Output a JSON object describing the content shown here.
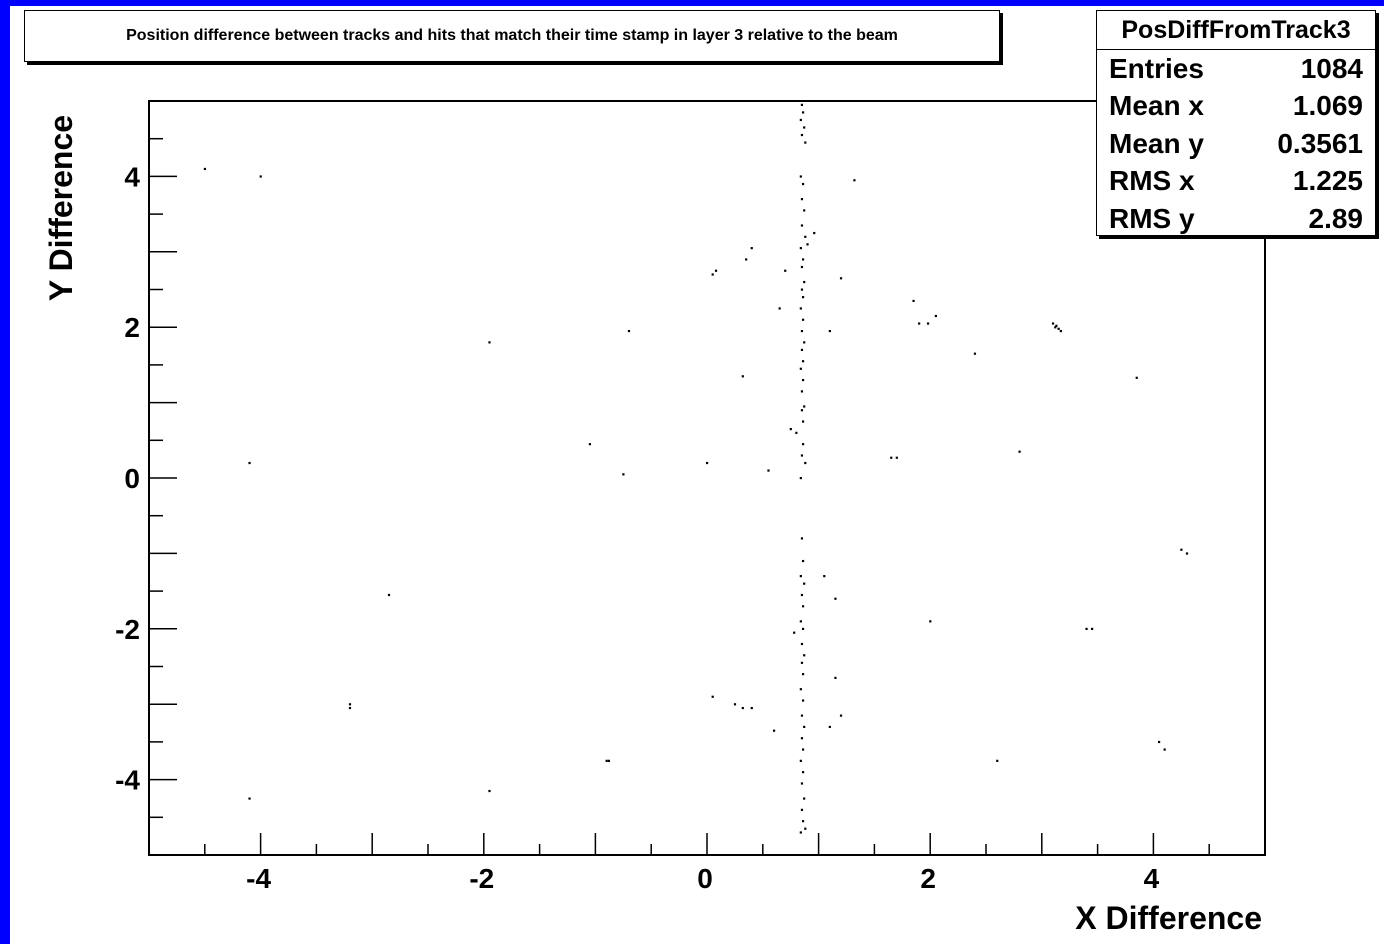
{
  "title": "Position difference between tracks and hits that match their time stamp in layer 3 relative to the beam",
  "stats": {
    "name": "PosDiffFromTrack3",
    "rows": [
      {
        "label": "Entries",
        "value": "1084"
      },
      {
        "label": "Mean x",
        "value": "1.069"
      },
      {
        "label": "Mean y",
        "value": "0.3561"
      },
      {
        "label": "RMS x",
        "value": "1.225"
      },
      {
        "label": "RMS y",
        "value": "2.89"
      }
    ]
  },
  "colors": {
    "frame": "#0000ff",
    "background": "#ffffff",
    "markers": "#000000"
  },
  "chart_data": {
    "type": "scatter",
    "title": "Position difference between tracks and hits that match their time stamp in layer 3 relative to the beam",
    "xlabel": "X Difference",
    "ylabel": "Y Difference",
    "xlim": [
      -5,
      5
    ],
    "ylim": [
      -5,
      5
    ],
    "x_ticks": [
      -4,
      -2,
      0,
      2,
      4
    ],
    "y_ticks": [
      -4,
      -2,
      0,
      2,
      4
    ],
    "grid": false,
    "points": [
      [
        0.85,
        4.95
      ],
      [
        0.86,
        4.85
      ],
      [
        0.84,
        4.75
      ],
      [
        0.87,
        4.65
      ],
      [
        0.85,
        4.55
      ],
      [
        0.88,
        4.45
      ],
      [
        0.84,
        4.0
      ],
      [
        0.86,
        3.9
      ],
      [
        0.85,
        3.7
      ],
      [
        0.87,
        3.55
      ],
      [
        0.85,
        3.35
      ],
      [
        0.88,
        3.2
      ],
      [
        0.84,
        3.05
      ],
      [
        0.86,
        2.9
      ],
      [
        0.85,
        2.8
      ],
      [
        0.87,
        2.6
      ],
      [
        0.85,
        2.5
      ],
      [
        0.86,
        2.4
      ],
      [
        0.84,
        2.25
      ],
      [
        0.86,
        2.1
      ],
      [
        0.85,
        1.95
      ],
      [
        0.87,
        1.8
      ],
      [
        0.85,
        1.7
      ],
      [
        0.86,
        1.55
      ],
      [
        0.84,
        1.45
      ],
      [
        0.86,
        1.3
      ],
      [
        0.85,
        1.15
      ],
      [
        0.87,
        0.95
      ],
      [
        0.85,
        0.9
      ],
      [
        0.86,
        0.75
      ],
      [
        0.8,
        0.6
      ],
      [
        0.86,
        0.45
      ],
      [
        0.85,
        0.3
      ],
      [
        0.88,
        0.2
      ],
      [
        0.84,
        0.0
      ],
      [
        0.85,
        -0.8
      ],
      [
        0.86,
        -1.1
      ],
      [
        0.84,
        -1.3
      ],
      [
        0.87,
        -1.4
      ],
      [
        0.85,
        -1.55
      ],
      [
        0.86,
        -1.7
      ],
      [
        0.84,
        -1.9
      ],
      [
        0.86,
        -2.0
      ],
      [
        0.78,
        -2.05
      ],
      [
        0.85,
        -2.2
      ],
      [
        0.87,
        -2.35
      ],
      [
        0.85,
        -2.45
      ],
      [
        0.86,
        -2.6
      ],
      [
        0.84,
        -2.8
      ],
      [
        0.86,
        -2.95
      ],
      [
        0.85,
        -3.15
      ],
      [
        0.87,
        -3.3
      ],
      [
        0.85,
        -3.45
      ],
      [
        0.86,
        -3.6
      ],
      [
        0.84,
        -3.75
      ],
      [
        0.86,
        -3.9
      ],
      [
        0.85,
        -4.05
      ],
      [
        0.87,
        -4.25
      ],
      [
        0.85,
        -4.4
      ],
      [
        0.86,
        -4.55
      ],
      [
        0.88,
        -4.65
      ],
      [
        0.84,
        -4.7
      ],
      [
        0.96,
        3.25
      ],
      [
        0.9,
        3.1
      ],
      [
        1.2,
        2.65
      ],
      [
        0.7,
        2.75
      ],
      [
        0.4,
        3.05
      ],
      [
        0.35,
        2.9
      ],
      [
        0.08,
        2.75
      ],
      [
        0.05,
        2.7
      ],
      [
        0.65,
        2.25
      ],
      [
        1.1,
        1.95
      ],
      [
        0.32,
        1.35
      ],
      [
        1.32,
        3.95
      ],
      [
        1.05,
        -1.3
      ],
      [
        1.15,
        -1.6
      ],
      [
        1.15,
        -2.65
      ],
      [
        1.2,
        -3.15
      ],
      [
        1.1,
        -3.3
      ],
      [
        0.25,
        -3.0
      ],
      [
        0.32,
        -3.05
      ],
      [
        0.4,
        -3.05
      ],
      [
        0.6,
        -3.35
      ],
      [
        0.05,
        -2.9
      ],
      [
        0.75,
        0.65
      ],
      [
        0.55,
        0.1
      ],
      [
        0.0,
        0.2
      ],
      [
        3.1,
        2.05
      ],
      [
        3.13,
        2.02
      ],
      [
        3.15,
        1.98
      ],
      [
        3.17,
        1.95
      ],
      [
        3.12,
        2.0
      ],
      [
        1.85,
        2.35
      ],
      [
        1.9,
        2.05
      ],
      [
        1.98,
        2.05
      ],
      [
        2.05,
        2.15
      ],
      [
        2.4,
        1.65
      ],
      [
        1.65,
        0.27
      ],
      [
        1.7,
        0.27
      ],
      [
        2.8,
        0.35
      ],
      [
        3.85,
        1.33
      ],
      [
        4.25,
        -0.95
      ],
      [
        4.3,
        -1.0
      ],
      [
        2.0,
        -1.9
      ],
      [
        3.4,
        -2.0
      ],
      [
        3.45,
        -2.0
      ],
      [
        4.05,
        -3.5
      ],
      [
        4.1,
        -3.6
      ],
      [
        2.6,
        -3.75
      ],
      [
        -4.5,
        4.1
      ],
      [
        -4.0,
        4.0
      ],
      [
        -1.95,
        1.8
      ],
      [
        -0.7,
        1.95
      ],
      [
        -1.05,
        0.45
      ],
      [
        -4.1,
        0.2
      ],
      [
        -0.75,
        0.05
      ],
      [
        -2.85,
        -1.55
      ],
      [
        -3.2,
        -3.0
      ],
      [
        -3.2,
        -3.05
      ],
      [
        -0.9,
        -3.75
      ],
      [
        -0.88,
        -3.75
      ],
      [
        -1.95,
        -4.15
      ],
      [
        -4.1,
        -4.25
      ]
    ]
  }
}
